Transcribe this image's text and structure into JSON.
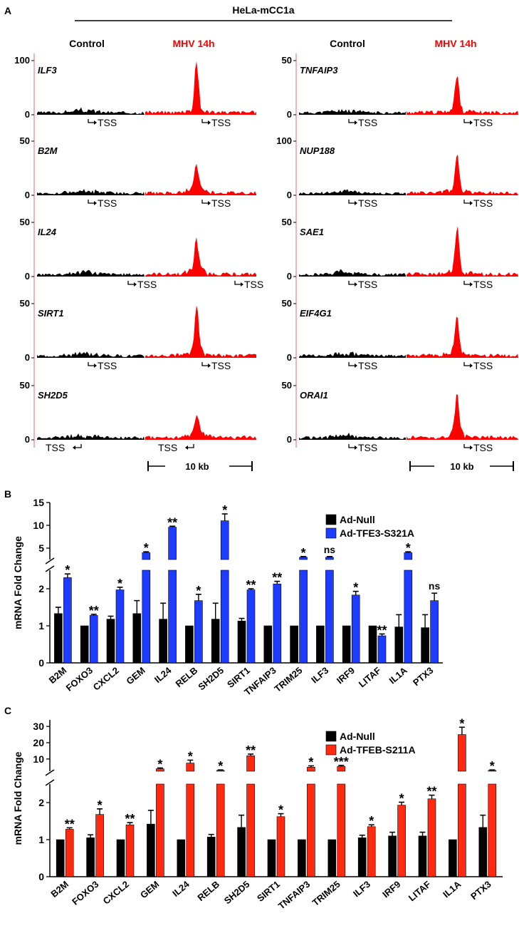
{
  "panel_a": {
    "letter": "A",
    "cell_line": "HeLa-mCC1a",
    "col_control": "Control",
    "col_mhv": "MHV 14h",
    "tss_label": "TSS",
    "scale_label": "10 kb",
    "colors": {
      "control": "#000000",
      "mhv": "#ff0000",
      "axis": "#f08080"
    },
    "left_tracks": [
      {
        "gene": "ILF3",
        "ymax": "100",
        "yzero": "0",
        "tss_dir": [
          "right",
          "right"
        ],
        "peak": 0.85
      },
      {
        "gene": "B2M",
        "ymax": "50",
        "yzero": "0",
        "tss_dir": [
          "right",
          "right"
        ],
        "peak": 0.45
      },
      {
        "gene": "IL24",
        "ymax": "50",
        "yzero": "0",
        "tss_dir": [
          "right",
          "right"
        ],
        "peak": 0.6
      },
      {
        "gene": "SIRT1",
        "ymax": "50",
        "yzero": "0",
        "tss_dir": [
          "right",
          "right"
        ],
        "peak": 0.85
      },
      {
        "gene": "SH2D5",
        "ymax": "50",
        "yzero": "0",
        "tss_dir": [
          "left",
          "left"
        ],
        "peak": 0.35
      }
    ],
    "right_tracks": [
      {
        "gene": "TNFAIP3",
        "ymax": "50",
        "yzero": "0",
        "tss_dir": [
          "right",
          "right"
        ],
        "peak": 0.6
      },
      {
        "gene": "NUP188",
        "ymax": "100",
        "yzero": "0",
        "tss_dir": [
          "right",
          "right"
        ],
        "peak": 0.65
      },
      {
        "gene": "SAE1",
        "ymax": "50",
        "yzero": "0",
        "tss_dir": [
          "right",
          "right"
        ],
        "peak": 0.85
      },
      {
        "gene": "EIF4G1",
        "ymax": "50",
        "yzero": "0",
        "tss_dir": [
          "right",
          "right"
        ],
        "peak": 0.65
      },
      {
        "gene": "ORAI1",
        "ymax": "50",
        "yzero": "0",
        "tss_dir": [
          "right",
          "right"
        ],
        "peak": 0.75
      }
    ]
  },
  "chart_data": [
    {
      "panel": "B",
      "type": "bar",
      "ylabel": "mRNA Fold Change",
      "categories": [
        "B2M",
        "FOXO3",
        "CXCL2",
        "GEM",
        "IL24",
        "RELB",
        "SH2D5",
        "SIRT1",
        "TNFAIP3",
        "TRIM25",
        "ILF3",
        "IRF9",
        "LITAF",
        "IL1A",
        "PTX3"
      ],
      "series": [
        {
          "name": "Ad-Null",
          "color": "#000000",
          "values": [
            1.33,
            1.0,
            1.18,
            1.33,
            1.18,
            1.0,
            1.18,
            1.13,
            1.0,
            1.0,
            1.0,
            1.0,
            1.0,
            0.97,
            0.95
          ],
          "errors": [
            0.17,
            0,
            0.08,
            0.35,
            0.43,
            0,
            0.43,
            0.07,
            0,
            0,
            0,
            0,
            0,
            0.33,
            0.35
          ]
        },
        {
          "name": "Ad-TFE3-S321A",
          "color": "#1e3cff",
          "values": [
            2.3,
            1.28,
            1.97,
            4.0,
            9.6,
            1.68,
            11.0,
            1.97,
            2.13,
            3.0,
            3.0,
            1.83,
            0.73,
            4.0,
            1.68
          ],
          "errors": [
            0.1,
            0.03,
            0.07,
            0.2,
            0.2,
            0.17,
            1.5,
            0.03,
            0.07,
            0.15,
            0.15,
            0.1,
            0.05,
            0.2,
            0.2
          ]
        }
      ],
      "lower_axis": {
        "range": [
          0,
          2.5
        ],
        "ticks": [
          "0",
          "1",
          "2"
        ]
      },
      "upper_axis": {
        "range": [
          2.5,
          15
        ],
        "ticks": [
          "5",
          "10",
          "15"
        ]
      },
      "significance": [
        "*",
        "**",
        "*",
        "*",
        "**",
        "*",
        "*",
        "**",
        "**",
        "*",
        "ns",
        "*",
        "**",
        "*",
        "ns"
      ]
    },
    {
      "panel": "C",
      "type": "bar",
      "ylabel": "mRNA Fold Change",
      "categories": [
        "B2M",
        "FOXO3",
        "CXCL2",
        "GEM",
        "IL24",
        "RELB",
        "SH2D5",
        "SIRT1",
        "TNFAIP3",
        "TRIM25",
        "ILF3",
        "IRF9",
        "LITAF",
        "IL1A",
        "PTX3"
      ],
      "series": [
        {
          "name": "Ad-Null",
          "color": "#000000",
          "values": [
            1.0,
            1.05,
            1.0,
            1.42,
            1.0,
            1.07,
            1.33,
            1.0,
            1.0,
            1.0,
            1.05,
            1.1,
            1.1,
            1.0,
            1.33
          ],
          "errors": [
            0,
            0.08,
            0,
            0.37,
            0,
            0.07,
            0.33,
            0,
            0,
            0,
            0.07,
            0.1,
            0.1,
            0,
            0.33
          ]
        },
        {
          "name": "Ad-TFEB-S211A",
          "color": "#ff2a10",
          "values": [
            1.28,
            1.68,
            1.4,
            4.0,
            7.5,
            3.0,
            12.0,
            1.62,
            5.0,
            5.5,
            1.35,
            1.93,
            2.1,
            25.0,
            3.0
          ],
          "errors": [
            0.04,
            0.15,
            0.06,
            0.5,
            1.8,
            0.3,
            1.0,
            0.08,
            0.8,
            0.6,
            0.05,
            0.08,
            0.1,
            4.5,
            0.3
          ]
        }
      ],
      "lower_axis": {
        "range": [
          0,
          2.5
        ],
        "ticks": [
          "0",
          "1",
          "2"
        ]
      },
      "upper_axis": {
        "range": [
          2.5,
          34
        ],
        "ticks": [
          "10",
          "20",
          "30"
        ]
      },
      "significance": [
        "**",
        "*",
        "**",
        "*",
        "*",
        "*",
        "**",
        "*",
        "*",
        "***",
        "*",
        "*",
        "**",
        "*",
        "*"
      ]
    }
  ]
}
